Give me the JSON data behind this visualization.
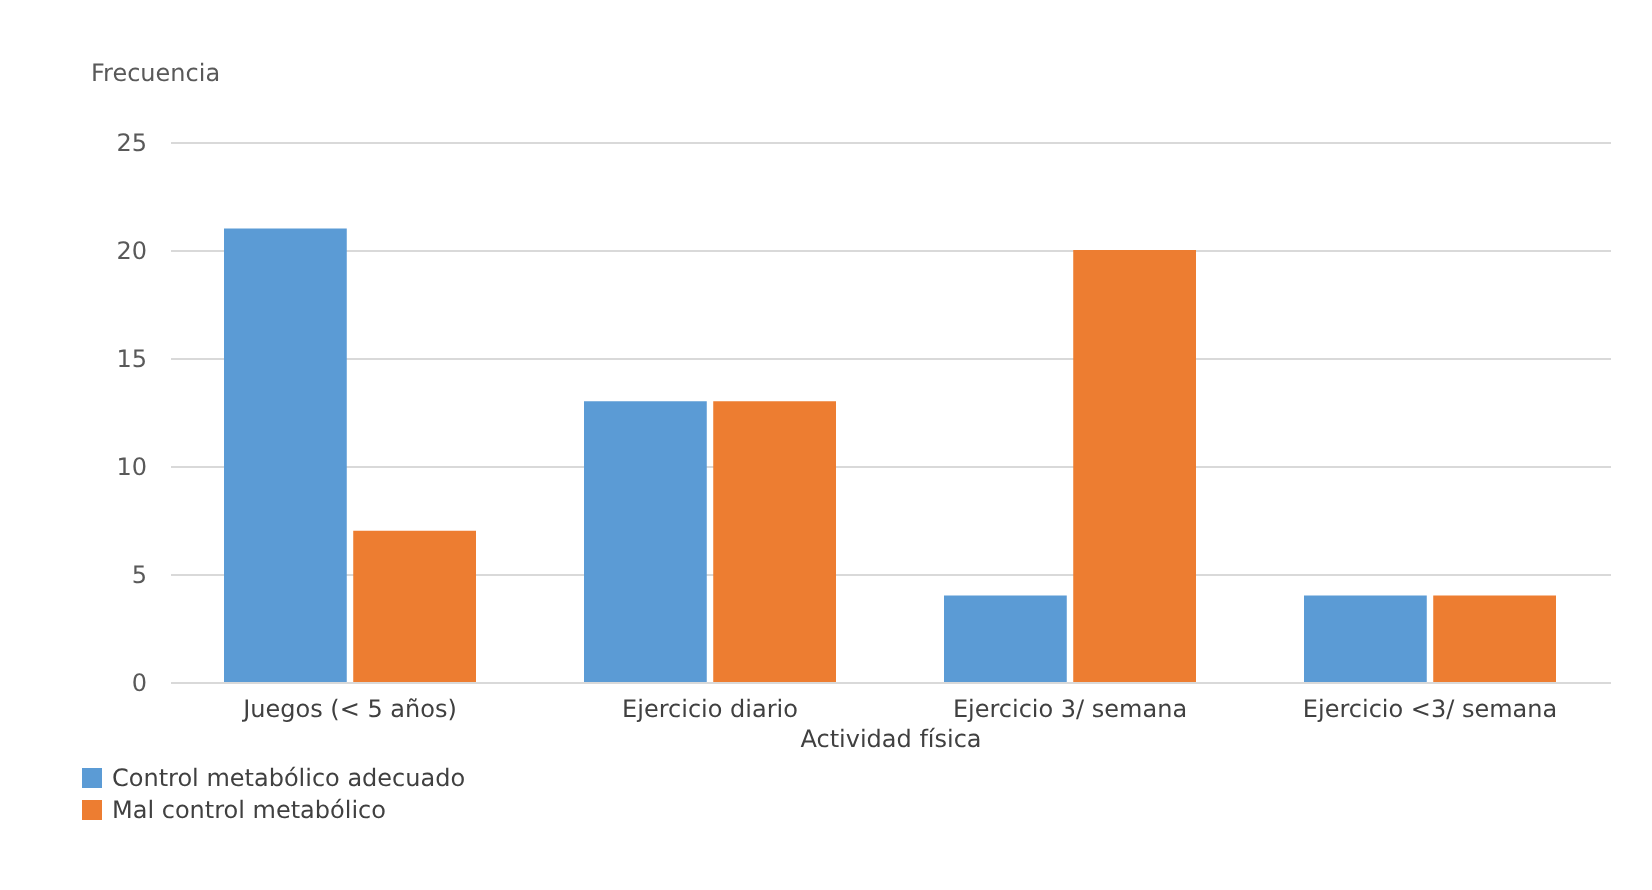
{
  "chart_data": {
    "type": "bar",
    "ylabel": "Frecuencia",
    "xlabel": "Actividad física",
    "categories": [
      "Juegos (< 5 años)",
      "Ejercicio diario",
      "Ejercicio 3/ semana",
      "Ejercicio <3/ semana"
    ],
    "series": [
      {
        "name": "Control metabólico adecuado",
        "color": "#5b9bd5",
        "values": [
          21,
          13,
          4,
          4
        ]
      },
      {
        "name": "Mal control metabólico",
        "color": "#ed7d31",
        "values": [
          7,
          13,
          20,
          4
        ]
      }
    ],
    "ylim": [
      0,
      25
    ],
    "yticks": [
      0,
      5,
      10,
      15,
      20,
      25
    ],
    "grid": "y",
    "legend": "bottom left"
  }
}
